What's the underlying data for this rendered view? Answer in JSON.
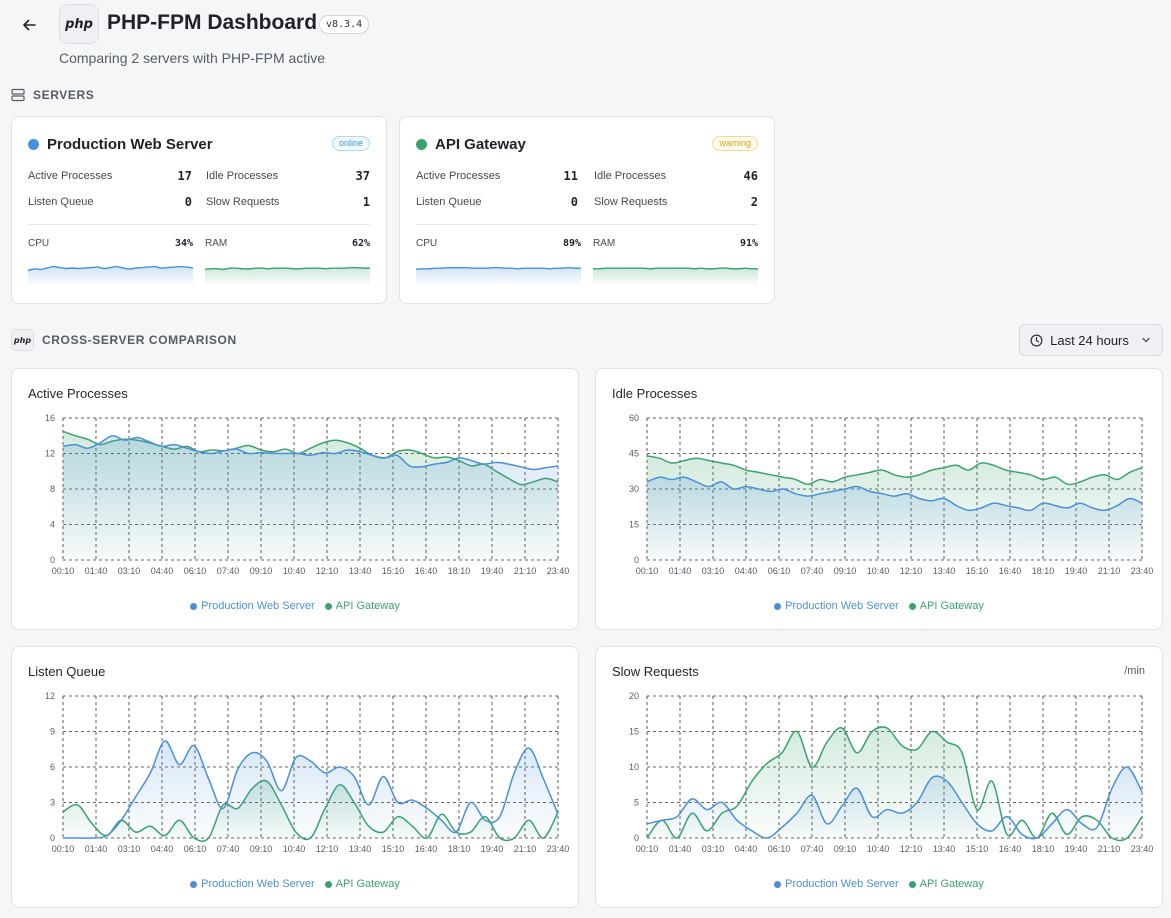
{
  "header": {
    "logo_text": "php",
    "title": "PHP-FPM Dashboard",
    "version": "v8.3.4",
    "subtitle": "Comparing 2 servers with PHP-FPM active"
  },
  "colors": {
    "blue": "#4a90d9",
    "green": "#3aa36c"
  },
  "servers_section": {
    "label": "SERVERS",
    "icon": "server-stack-icon"
  },
  "servers": [
    {
      "name": "Production Web Server",
      "status": "online",
      "color": "#4a90d9",
      "active_label": "Active Processes",
      "active": "17",
      "idle_label": "Idle Processes",
      "idle": "37",
      "queue_label": "Listen Queue",
      "queue": "0",
      "slow_label": "Slow Requests",
      "slow": "1",
      "cpu_label": "CPU",
      "cpu": "34%",
      "ram_label": "RAM",
      "ram": "62%",
      "cpu_spark": [
        30,
        33,
        32,
        35,
        38,
        36,
        34,
        35,
        34,
        35,
        36,
        37,
        34,
        36,
        38,
        35,
        33,
        35,
        36,
        37,
        38,
        35,
        36,
        37,
        38,
        37,
        35
      ],
      "ram_spark": [
        60,
        61,
        61,
        60,
        62,
        62,
        61,
        61,
        62,
        62,
        61,
        62,
        62,
        62,
        61,
        61,
        62,
        62,
        62,
        61,
        62,
        62,
        62,
        63,
        63,
        62,
        62
      ]
    },
    {
      "name": "API Gateway",
      "status": "warning",
      "color": "#3aa36c",
      "active_label": "Active Processes",
      "active": "11",
      "idle_label": "Idle Processes",
      "idle": "46",
      "queue_label": "Listen Queue",
      "queue": "0",
      "slow_label": "Slow Requests",
      "slow": "2",
      "cpu_label": "CPU",
      "cpu": "89%",
      "ram_label": "RAM",
      "ram": "91%",
      "cpu_spark": [
        87,
        88,
        88,
        89,
        89,
        90,
        90,
        90,
        90,
        89,
        89,
        89,
        90,
        90,
        89,
        89,
        88,
        89,
        89,
        89,
        89,
        88,
        89,
        89,
        90,
        89,
        89
      ],
      "ram_spark": [
        90,
        90,
        91,
        91,
        91,
        91,
        91,
        91,
        91,
        90,
        91,
        91,
        91,
        91,
        91,
        91,
        90,
        91,
        90,
        90,
        91,
        91,
        90,
        90,
        91,
        90,
        90
      ]
    }
  ],
  "comparison_section": {
    "label": "CROSS-SERVER COMPARISON",
    "icon": "php-icon",
    "icon_text": "php"
  },
  "time_range": {
    "label": "Last 24 hours",
    "icon": "clock-icon"
  },
  "legend": {
    "series_a": "Production Web Server",
    "series_b": "API Gateway"
  },
  "x_ticks": [
    "00:10",
    "01:40",
    "03:10",
    "04:40",
    "06:10",
    "07:40",
    "09:10",
    "10:40",
    "12:10",
    "13:40",
    "15:10",
    "16:40",
    "18:10",
    "19:40",
    "21:10",
    "23:40"
  ],
  "chart_data": [
    {
      "type": "area",
      "title": "Active Processes",
      "unit": "",
      "x_ticks": [
        "00:10",
        "01:40",
        "03:10",
        "04:40",
        "06:10",
        "07:40",
        "09:10",
        "10:40",
        "12:10",
        "13:40",
        "15:10",
        "16:40",
        "18:10",
        "19:40",
        "21:10",
        "23:40"
      ],
      "ylim": [
        0,
        16
      ],
      "y_ticks": [
        0,
        4,
        8,
        12,
        16
      ],
      "grid": true,
      "legend_position": "bottom",
      "series": [
        {
          "name": "Production Web Server",
          "values": [
            12.8,
            13.0,
            12.6,
            13.2,
            14.0,
            13.5,
            13.8,
            13.3,
            12.8,
            13.0,
            12.6,
            12.2,
            12.0,
            12.3,
            12.5,
            12.0,
            12.1,
            12.0,
            12.0,
            12.0,
            11.8,
            12.1,
            12.0,
            12.4,
            12.2,
            11.8,
            11.5,
            11.8,
            10.6,
            10.5,
            10.8,
            11.0,
            11.5,
            11.2,
            10.8,
            11.0,
            10.8,
            10.5,
            10.2,
            10.4,
            10.6
          ]
        },
        {
          "name": "API Gateway",
          "values": [
            14.5,
            14.0,
            13.6,
            13.0,
            13.4,
            13.6,
            13.5,
            13.2,
            12.8,
            12.5,
            12.8,
            12.2,
            12.4,
            12.3,
            12.6,
            12.9,
            12.4,
            12.2,
            12.5,
            12.0,
            12.6,
            13.2,
            13.5,
            13.2,
            12.6,
            11.8,
            11.5,
            12.2,
            12.4,
            12.0,
            11.5,
            11.6,
            11.2,
            10.6,
            10.8,
            10.0,
            9.2,
            8.5,
            8.8,
            9.2,
            8.8
          ]
        }
      ]
    },
    {
      "type": "area",
      "title": "Idle Processes",
      "unit": "",
      "x_ticks": [
        "00:10",
        "01:40",
        "03:10",
        "04:40",
        "06:10",
        "07:40",
        "09:10",
        "10:40",
        "12:10",
        "13:40",
        "15:10",
        "16:40",
        "18:10",
        "19:40",
        "21:10",
        "23:40"
      ],
      "ylim": [
        0,
        60
      ],
      "y_ticks": [
        0,
        15,
        30,
        45,
        60
      ],
      "grid": true,
      "legend_position": "bottom",
      "series": [
        {
          "name": "Production Web Server",
          "values": [
            33,
            35,
            34,
            35,
            33,
            31,
            33,
            30,
            31,
            30,
            29,
            30,
            28,
            27,
            28,
            29,
            30,
            31,
            29,
            28,
            27,
            28,
            26,
            25,
            26,
            23,
            21,
            22,
            24,
            23,
            22,
            21,
            24,
            23,
            22,
            24,
            22,
            21,
            23,
            26,
            24
          ]
        },
        {
          "name": "API Gateway",
          "values": [
            44,
            43,
            41,
            42,
            43,
            42,
            41,
            40,
            38,
            37,
            36,
            35,
            34,
            32,
            34,
            33,
            35,
            36,
            37,
            38,
            36,
            35,
            36,
            38,
            39,
            40,
            38,
            41,
            40,
            38,
            37,
            36,
            34,
            35,
            32,
            33,
            35,
            36,
            34,
            37,
            39
          ]
        }
      ]
    },
    {
      "type": "area",
      "title": "Listen Queue",
      "unit": "",
      "x_ticks": [
        "00:10",
        "01:40",
        "03:10",
        "04:40",
        "06:10",
        "07:40",
        "09:10",
        "10:40",
        "12:10",
        "13:40",
        "15:10",
        "16:40",
        "18:10",
        "19:40",
        "21:10",
        "23:40"
      ],
      "ylim": [
        0,
        12
      ],
      "y_ticks": [
        0,
        3,
        6,
        9,
        12
      ],
      "grid": true,
      "legend_position": "bottom",
      "series": [
        {
          "name": "Production Web Server",
          "values": [
            0,
            0,
            0,
            0.2,
            1.5,
            3.5,
            5.5,
            8.2,
            6.2,
            7.8,
            5.0,
            2.5,
            5.8,
            7.2,
            6.5,
            4.0,
            6.8,
            6.5,
            5.5,
            6.0,
            5.2,
            2.8,
            5.2,
            3.0,
            3.2,
            2.5,
            1.5,
            0.5,
            3.0,
            1.5,
            1.8,
            5.5,
            7.6,
            5.0,
            2.0
          ]
        },
        {
          "name": "API Gateway",
          "values": [
            2.2,
            2.8,
            1.2,
            0.2,
            1.5,
            0.5,
            1.0,
            0.2,
            1.5,
            0,
            0,
            2.8,
            2.5,
            4.2,
            4.8,
            2.8,
            0.5,
            0,
            2.5,
            4.5,
            3.0,
            1.0,
            0.5,
            1.8,
            1.0,
            0,
            2.0,
            0.5,
            0.5,
            1.8,
            0,
            0,
            1.5,
            0,
            2.2
          ]
        }
      ]
    },
    {
      "type": "area",
      "title": "Slow Requests",
      "unit": "/min",
      "x_ticks": [
        "00:10",
        "01:40",
        "03:10",
        "04:40",
        "06:10",
        "07:40",
        "09:10",
        "10:40",
        "12:10",
        "13:40",
        "15:10",
        "16:40",
        "18:10",
        "19:40",
        "21:10",
        "23:40"
      ],
      "ylim": [
        0,
        20
      ],
      "y_ticks": [
        0,
        5,
        10,
        15,
        20
      ],
      "grid": true,
      "legend_position": "bottom",
      "series": [
        {
          "name": "Production Web Server",
          "values": [
            2.0,
            2.5,
            3.0,
            5.5,
            4.0,
            5.0,
            2.5,
            1.0,
            0,
            1.5,
            3.5,
            6.0,
            2.0,
            4.5,
            7.0,
            3.0,
            4.0,
            3.5,
            5.0,
            8.5,
            8.0,
            5.0,
            2.0,
            1.0,
            3.0,
            0.5,
            0,
            2.0,
            4.0,
            2.0,
            1.5,
            7.0,
            10.0,
            6.5
          ]
        },
        {
          "name": "API Gateway",
          "values": [
            0,
            2.5,
            0,
            3.5,
            1.0,
            3.5,
            4.5,
            8.0,
            10.5,
            12.0,
            15.0,
            10.0,
            13.5,
            15.5,
            12.0,
            15.0,
            15.5,
            13.0,
            12.5,
            15.0,
            13.5,
            12.0,
            4.0,
            8.0,
            0.5,
            2.5,
            0,
            3.5,
            0.5,
            3.0,
            2.5,
            0,
            0,
            3.0
          ]
        }
      ]
    }
  ]
}
